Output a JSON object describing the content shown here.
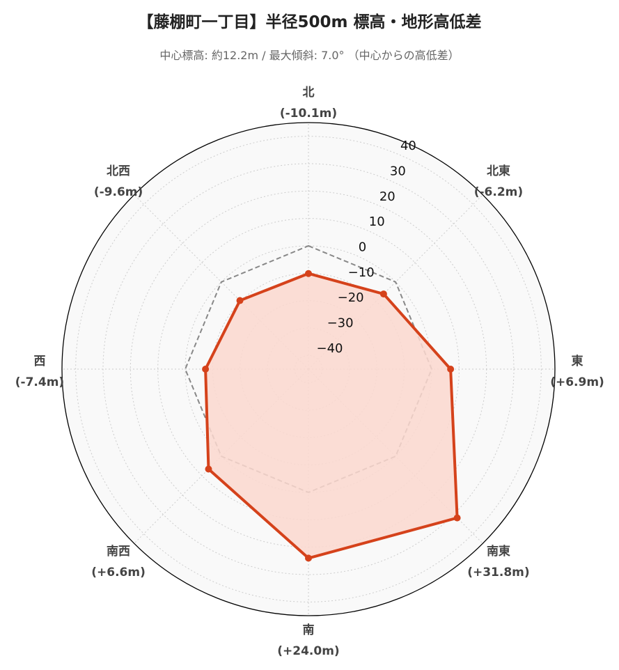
{
  "title": "【藤棚町一丁目】半径500m 標高・地形高低差",
  "subtitle": "中心標高: 約12.2m / 最大傾斜: 7.0° （中心からの高低差）",
  "colors": {
    "series": "#d5421b",
    "fill": "#fbd8cf",
    "reference": "#888888",
    "background": "#f9f9f9",
    "grid": "#cccccc"
  },
  "chart_data": {
    "type": "radar",
    "title": "【藤棚町一丁目】半径500m 標高・地形高低差",
    "subtitle": "中心標高: 約12.2m / 最大傾斜: 7.0° （中心からの高低差）",
    "directions": [
      "北",
      "北東",
      "東",
      "南東",
      "南",
      "南西",
      "西",
      "北西"
    ],
    "direction_labels": [
      "(-10.1m)",
      "(-6.2m)",
      "(+6.9m)",
      "(+31.8m)",
      "(+24.0m)",
      "(+6.6m)",
      "(-7.4m)",
      "(-9.6m)"
    ],
    "series": [
      {
        "values": [
          -10.1,
          -6.2,
          6.9,
          31.8,
          24.0,
          6.6,
          -7.4,
          -9.6
        ]
      }
    ],
    "reference_values": [
      0,
      0,
      0,
      0,
      0,
      0,
      0,
      0
    ],
    "r_ticks": [
      "−40",
      "−30",
      "−20",
      "−10",
      "0",
      "10",
      "20",
      "30",
      "40"
    ],
    "r_tick_values": [
      -40,
      -30,
      -20,
      -10,
      0,
      10,
      20,
      30,
      40
    ],
    "rlim": [
      -45,
      45
    ],
    "grid": true
  }
}
